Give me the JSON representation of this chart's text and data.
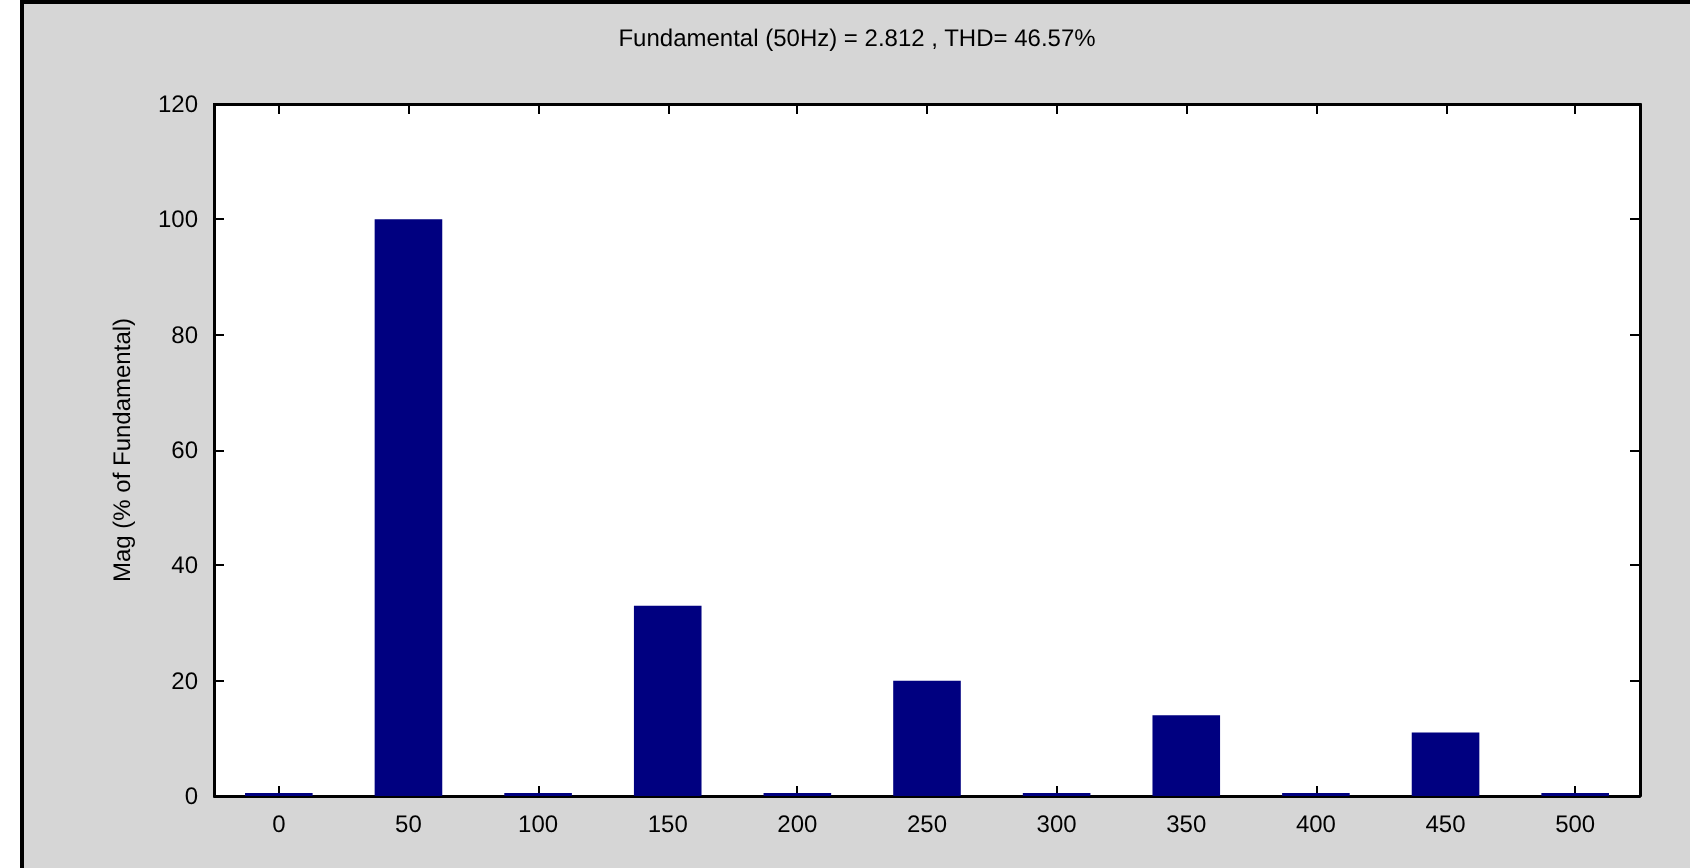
{
  "chart_data": {
    "type": "bar",
    "title": "Fundamental (50Hz) = 2.812 , THD= 46.57%",
    "ylabel": "Mag (% of Fundamental)",
    "x": [
      0,
      50,
      100,
      150,
      200,
      250,
      300,
      350,
      400,
      450,
      500
    ],
    "values": [
      0.5,
      100,
      0.5,
      33,
      0.5,
      20,
      0.5,
      14,
      0.5,
      11,
      0.5
    ],
    "color": "#000080",
    "xlim": [
      -25,
      525
    ],
    "xticks": [
      0,
      50,
      100,
      150,
      200,
      250,
      300,
      350,
      400,
      450,
      500
    ],
    "ylim": [
      0,
      120
    ],
    "yticks": [
      0,
      20,
      40,
      60,
      80,
      100,
      120
    ]
  }
}
